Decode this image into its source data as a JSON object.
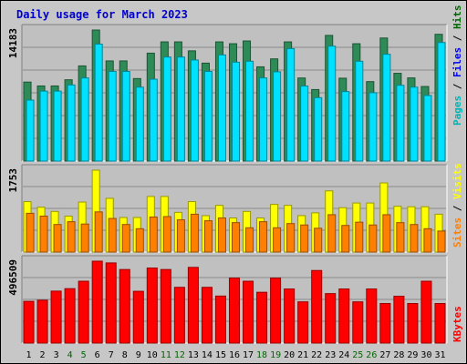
{
  "chart_data": [
    {
      "type": "bar",
      "title": "Daily usage for March 2023",
      "categories": [
        "1",
        "2",
        "3",
        "4",
        "5",
        "6",
        "7",
        "8",
        "9",
        "10",
        "11",
        "12",
        "13",
        "14",
        "15",
        "16",
        "17",
        "18",
        "19",
        "20",
        "21",
        "22",
        "23",
        "24",
        "25",
        "26",
        "27",
        "28",
        "29",
        "30",
        "31"
      ],
      "weekend_days": [
        "4",
        "5",
        "11",
        "12",
        "18",
        "19",
        "25",
        "26"
      ],
      "ylabel_max": "14183",
      "ylim": [
        0,
        14183
      ],
      "series": [
        {
          "name": "Pages",
          "color": "#006600",
          "values": [
            0,
            0,
            0,
            0,
            0,
            0,
            0,
            0,
            0,
            0,
            0,
            0,
            0,
            0,
            0,
            0,
            0,
            0,
            0,
            0,
            0,
            0,
            0,
            0,
            0,
            0,
            0,
            0,
            0,
            0,
            0
          ]
        },
        {
          "name": "Files",
          "color": "#0000ff",
          "values": [
            0,
            0,
            0,
            0,
            0,
            0,
            0,
            0,
            0,
            0,
            0,
            0,
            0,
            0,
            0,
            0,
            0,
            0,
            0,
            0,
            0,
            0,
            0,
            0,
            0,
            0,
            0,
            0,
            0,
            0,
            0
          ]
        },
        {
          "name": "Hits",
          "color": "#00b3b3",
          "values": [
            0,
            0,
            0,
            0,
            0,
            0,
            0,
            0,
            0,
            0,
            0,
            0,
            0,
            0,
            0,
            0,
            0,
            0,
            0,
            0,
            0,
            0,
            0,
            0,
            0,
            0,
            0,
            0,
            0,
            0,
            0
          ]
        }
      ],
      "bar_series": [
        {
          "name": "Hits",
          "color": "#2e8b57",
          "values": [
            8550,
            8130,
            8130,
            8800,
            10300,
            14183,
            10840,
            10840,
            8930,
            11680,
            12900,
            12900,
            11930,
            10600,
            12900,
            12700,
            13000,
            10200,
            11060,
            12900,
            8990,
            7740,
            13600,
            8970,
            12700,
            8600,
            13320,
            9500,
            9000,
            8070,
            13720
          ]
        },
        {
          "name": "Files",
          "color": "#00e0ff",
          "values": [
            6600,
            7570,
            7570,
            8240,
            9000,
            12660,
            9700,
            9700,
            8000,
            8860,
            11260,
            11260,
            10940,
            9700,
            11490,
            10700,
            10800,
            9000,
            9660,
            12170,
            8120,
            6860,
            12440,
            7520,
            10800,
            7400,
            11560,
            8200,
            8000,
            7100,
            12830
          ]
        }
      ]
    },
    {
      "type": "bar",
      "ylabel_max": "1753",
      "ylim": [
        0,
        1753
      ],
      "series": [
        {
          "name": "Visits",
          "color": "#ffff00",
          "values": [
            0,
            0,
            0,
            0,
            0,
            0,
            0,
            0,
            0,
            0,
            0,
            0,
            0,
            0,
            0,
            0,
            0,
            0,
            0,
            0,
            0,
            0,
            0,
            0,
            0,
            0,
            0,
            0,
            0,
            0,
            0
          ]
        },
        {
          "name": "Sites",
          "color": "#ff8000",
          "values": [
            0,
            0,
            0,
            0,
            0,
            0,
            0,
            0,
            0,
            0,
            0,
            0,
            0,
            0,
            0,
            0,
            0,
            0,
            0,
            0,
            0,
            0,
            0,
            0,
            0,
            0,
            0,
            0,
            0,
            0,
            0
          ]
        }
      ],
      "bar_series": [
        {
          "name": "Visits",
          "color": "#ffff00",
          "values": [
            1080,
            960,
            870,
            770,
            1070,
            1753,
            1150,
            740,
            740,
            1190,
            1190,
            850,
            1080,
            780,
            1000,
            730,
            870,
            730,
            1020,
            1000,
            780,
            840,
            1310,
            950,
            1050,
            1050,
            1480,
            980,
            970,
            970,
            810
          ]
        },
        {
          "name": "Sites",
          "color": "#ff8000",
          "values": [
            830,
            770,
            590,
            650,
            600,
            860,
            720,
            590,
            500,
            750,
            760,
            690,
            810,
            670,
            730,
            630,
            520,
            650,
            520,
            610,
            580,
            510,
            800,
            570,
            640,
            580,
            800,
            630,
            590,
            500,
            450
          ]
        }
      ]
    },
    {
      "type": "bar",
      "ylabel_max": "496509",
      "ylim": [
        0,
        496509
      ],
      "bar_series": [
        {
          "name": "KBytes",
          "color": "#ff0000",
          "values": [
            253000,
            260000,
            315000,
            330000,
            375000,
            496509,
            486000,
            446000,
            314000,
            455000,
            446000,
            338000,
            459000,
            338000,
            285000,
            394000,
            375000,
            308000,
            394000,
            328000,
            250000,
            440000,
            300000,
            328000,
            250000,
            328000,
            240000,
            284000,
            240000,
            375000,
            240000
          ]
        }
      ],
      "series": [
        {
          "name": "KBytes",
          "color": "#ff0000",
          "values": [
            0,
            0,
            0,
            0,
            0,
            0,
            0,
            0,
            0,
            0,
            0,
            0,
            0,
            0,
            0,
            0,
            0,
            0,
            0,
            0,
            0,
            0,
            0,
            0,
            0,
            0,
            0,
            0,
            0,
            0,
            0
          ]
        }
      ]
    }
  ],
  "legend": {
    "right_top": [
      {
        "text": "Pages",
        "color": "#00b3b3"
      },
      {
        "text": " / ",
        "color": "#000000"
      },
      {
        "text": "Files",
        "color": "#0000ff"
      },
      {
        "text": " / ",
        "color": "#000000"
      },
      {
        "text": "Hits",
        "color": "#006600"
      }
    ],
    "right_mid": [
      {
        "text": "Sites",
        "color": "#ff8000"
      },
      {
        "text": " / ",
        "color": "#000000"
      },
      {
        "text": "Visits",
        "color": "#ffff00"
      }
    ],
    "right_bottom": [
      {
        "text": "KBytes",
        "color": "#ff0000"
      }
    ]
  },
  "colors": {
    "background": "#c7c7c7",
    "panel": "#c0c0c0",
    "title": "#0000cc",
    "weekday_label": "#000000",
    "weekend_label": "#006600"
  }
}
